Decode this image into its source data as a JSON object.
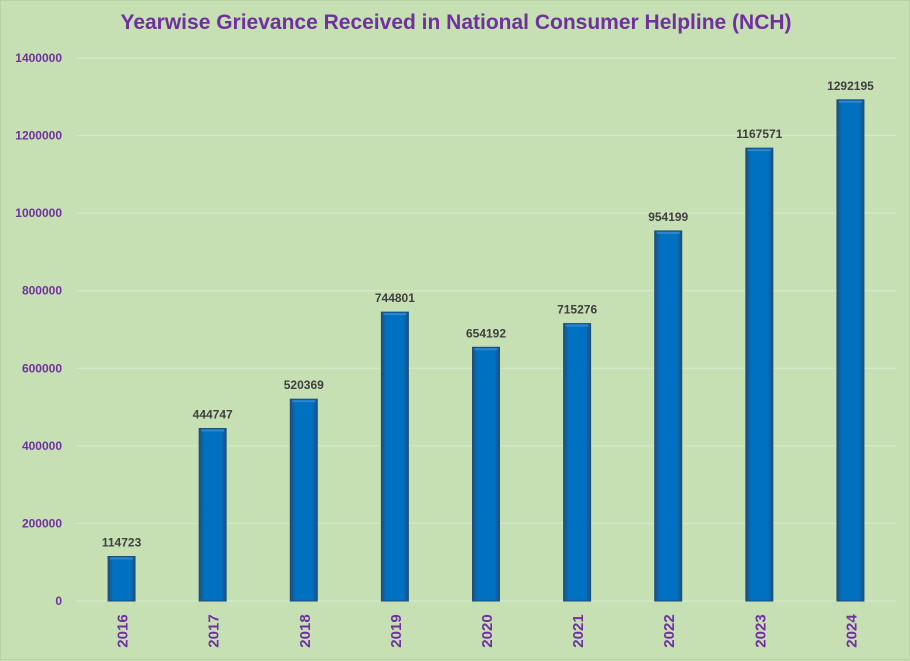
{
  "chart_data": {
    "type": "bar",
    "title": "Yearwise Grievance Received in National Consumer Helpline (NCH)",
    "categories": [
      "2016",
      "2017",
      "2018",
      "2019",
      "2020",
      "2021",
      "2022",
      "2023",
      "2024"
    ],
    "values": [
      114723,
      444747,
      520369,
      744801,
      654192,
      715276,
      954199,
      1167571,
      1292195
    ],
    "data_labels": [
      "114723",
      "444747",
      "520369",
      "744801",
      "654192",
      "715276",
      "954199",
      "1167571",
      "1292195"
    ],
    "ylim": [
      0,
      1400000
    ],
    "yticks": [
      0,
      200000,
      400000,
      600000,
      800000,
      1000000,
      1200000,
      1400000
    ],
    "ytick_labels": [
      "0",
      "200000",
      "400000",
      "600000",
      "800000",
      "1000000",
      "1200000",
      "1400000"
    ],
    "grid": true,
    "legend": "none",
    "colors": {
      "background": "#c6e0b4",
      "bar_fill": "#0070c0",
      "bar_edge": "#1f4e79",
      "title": "#7030a0",
      "axis_labels": "#7030a0",
      "data_labels": "#404040",
      "grid": "#d9ead0"
    }
  }
}
